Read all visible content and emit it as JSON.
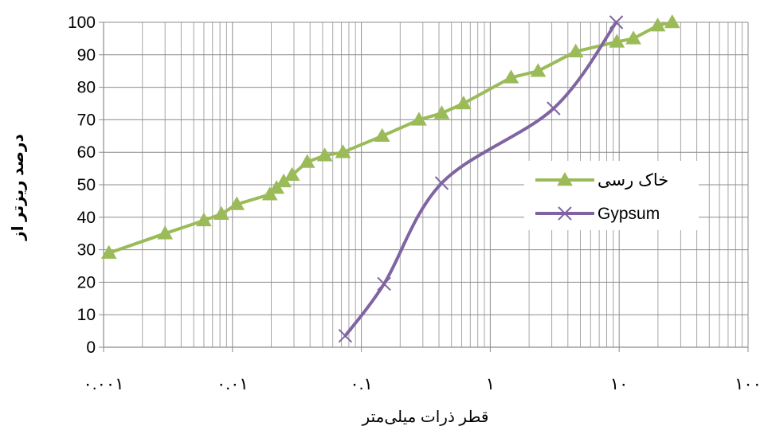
{
  "chart_data": {
    "type": "line",
    "x_scale": "log",
    "xlim": [
      0.001,
      100
    ],
    "ylim": [
      0,
      100
    ],
    "grid": true,
    "legend_position": "right",
    "title": "",
    "xlabel": "قطر ذرات میلی‌متر",
    "ylabel": "درصد ریزتر از",
    "x_tick_labels": [
      "٠.٠٠١",
      "٠.٠١",
      "٠.١",
      "١",
      "١٠",
      "١٠٠"
    ],
    "x_tick_values": [
      0.001,
      0.01,
      0.1,
      1,
      10,
      100
    ],
    "y_tick_labels": [
      "0",
      "10",
      "20",
      "30",
      "40",
      "50",
      "60",
      "70",
      "80",
      "90",
      "100"
    ],
    "y_tick_values": [
      0,
      10,
      20,
      30,
      40,
      50,
      60,
      70,
      80,
      90,
      100
    ],
    "series": [
      {
        "name": "خاک رسی",
        "color": "#9bbb59",
        "marker": "triangle",
        "x": [
          0.0011,
          0.003,
          0.006,
          0.0082,
          0.0108,
          0.0195,
          0.022,
          0.025,
          0.029,
          0.038,
          0.052,
          0.072,
          0.145,
          0.28,
          0.42,
          0.62,
          1.45,
          2.35,
          4.6,
          9.6,
          12.9,
          19.9,
          25.8
        ],
        "values": [
          29,
          35,
          39,
          41,
          44,
          47,
          49,
          51,
          53,
          57,
          59,
          60,
          65,
          70,
          72,
          75,
          83,
          85,
          91,
          94,
          95,
          99,
          100
        ]
      },
      {
        "name": "Gypsum",
        "color": "#8064a2",
        "marker": "x",
        "x": [
          0.075,
          0.15,
          0.42,
          3.1,
          9.5
        ],
        "values": [
          3.5,
          19.5,
          50.5,
          73.5,
          100
        ]
      }
    ]
  }
}
